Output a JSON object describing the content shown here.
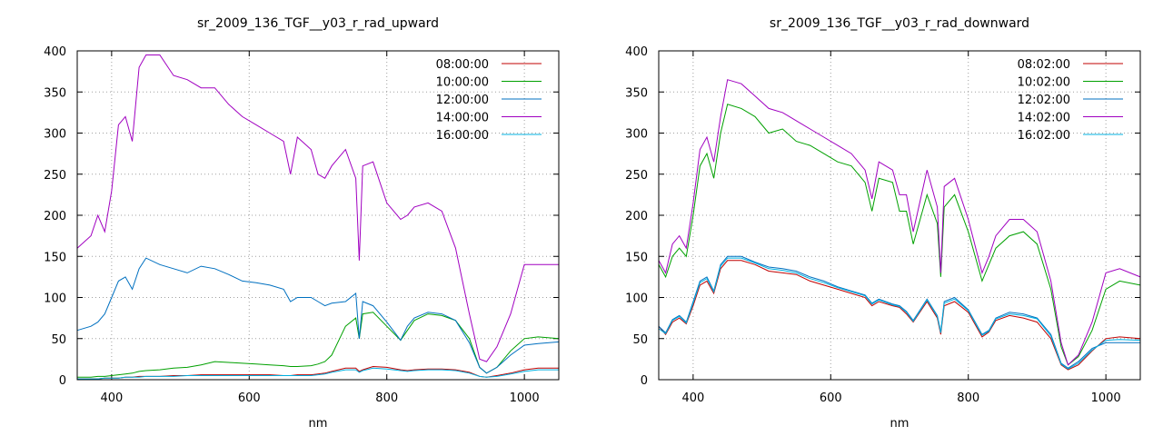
{
  "colors": {
    "08": "#c00000",
    "10": "#00a000",
    "12": "#0070c0",
    "14": "#a000c0",
    "16": "#00b0e0"
  },
  "chart_data": [
    {
      "type": "line",
      "title": "sr_2009_136_TGF__y03_r_rad_upward",
      "xlabel": "nm",
      "ylabel": "",
      "xlim": [
        350,
        1050
      ],
      "ylim": [
        0,
        400
      ],
      "xticks": [
        400,
        600,
        800,
        1000
      ],
      "yticks": [
        0,
        50,
        100,
        150,
        200,
        250,
        300,
        350,
        400
      ],
      "grid": true,
      "legend_position": "top-right",
      "x": [
        350,
        370,
        380,
        390,
        400,
        410,
        420,
        430,
        440,
        450,
        470,
        490,
        510,
        530,
        550,
        570,
        590,
        610,
        630,
        650,
        660,
        670,
        690,
        700,
        710,
        720,
        740,
        755,
        760,
        765,
        780,
        800,
        820,
        830,
        840,
        860,
        880,
        900,
        920,
        935,
        945,
        960,
        980,
        1000,
        1020,
        1050
      ],
      "series": [
        {
          "name": "08:00:00",
          "color_key": "08",
          "values": [
            1,
            1,
            1,
            2,
            2,
            2,
            3,
            3,
            4,
            4,
            4,
            5,
            5,
            6,
            6,
            6,
            6,
            6,
            6,
            5,
            5,
            6,
            6,
            7,
            8,
            10,
            14,
            14,
            10,
            12,
            16,
            15,
            12,
            11,
            12,
            13,
            13,
            12,
            9,
            4,
            3,
            5,
            8,
            12,
            14,
            14
          ]
        },
        {
          "name": "10:00:00",
          "color_key": "10",
          "values": [
            3,
            3,
            4,
            4,
            5,
            6,
            7,
            8,
            10,
            11,
            12,
            14,
            15,
            18,
            22,
            21,
            20,
            19,
            18,
            17,
            16,
            16,
            17,
            19,
            22,
            30,
            65,
            75,
            50,
            80,
            82,
            65,
            48,
            60,
            72,
            80,
            78,
            72,
            50,
            15,
            8,
            15,
            35,
            50,
            52,
            50
          ]
        },
        {
          "name": "12:00:00",
          "color_key": "12",
          "values": [
            60,
            65,
            70,
            80,
            100,
            120,
            125,
            110,
            135,
            148,
            140,
            135,
            130,
            138,
            135,
            128,
            120,
            118,
            115,
            110,
            95,
            100,
            100,
            95,
            90,
            93,
            95,
            105,
            50,
            95,
            90,
            70,
            48,
            65,
            75,
            82,
            80,
            72,
            45,
            15,
            8,
            15,
            30,
            42,
            44,
            46
          ]
        },
        {
          "name": "14:00:00",
          "color_key": "14",
          "values": [
            160,
            175,
            200,
            180,
            230,
            310,
            320,
            290,
            380,
            395,
            395,
            370,
            365,
            355,
            355,
            335,
            320,
            310,
            300,
            290,
            250,
            295,
            280,
            250,
            245,
            260,
            280,
            245,
            145,
            260,
            265,
            215,
            195,
            200,
            210,
            215,
            205,
            160,
            80,
            25,
            22,
            40,
            80,
            140,
            140,
            140
          ]
        },
        {
          "name": "16:00:00",
          "color_key": "16",
          "values": [
            1,
            1,
            1,
            2,
            2,
            2,
            3,
            3,
            3,
            4,
            4,
            4,
            5,
            5,
            5,
            5,
            5,
            5,
            5,
            5,
            5,
            5,
            5,
            6,
            7,
            9,
            12,
            12,
            9,
            11,
            14,
            13,
            11,
            10,
            11,
            12,
            12,
            11,
            8,
            4,
            3,
            4,
            7,
            10,
            12,
            12
          ]
        }
      ]
    },
    {
      "type": "line",
      "title": "sr_2009_136_TGF__y03_r_rad_downward",
      "xlabel": "nm",
      "ylabel": "",
      "xlim": [
        350,
        1050
      ],
      "ylim": [
        0,
        400
      ],
      "xticks": [
        400,
        600,
        800,
        1000
      ],
      "yticks": [
        0,
        50,
        100,
        150,
        200,
        250,
        300,
        350,
        400
      ],
      "grid": true,
      "legend_position": "top-right",
      "x": [
        350,
        360,
        370,
        380,
        390,
        400,
        410,
        420,
        430,
        440,
        450,
        470,
        490,
        510,
        530,
        550,
        570,
        590,
        610,
        630,
        650,
        660,
        670,
        690,
        700,
        710,
        720,
        740,
        755,
        760,
        765,
        780,
        800,
        820,
        830,
        840,
        860,
        880,
        900,
        920,
        935,
        945,
        960,
        980,
        1000,
        1020,
        1050
      ],
      "series": [
        {
          "name": "08:02:00",
          "color_key": "08",
          "values": [
            65,
            55,
            70,
            75,
            68,
            90,
            115,
            120,
            105,
            135,
            145,
            145,
            140,
            132,
            130,
            128,
            120,
            115,
            110,
            105,
            100,
            90,
            95,
            90,
            88,
            80,
            70,
            95,
            75,
            55,
            90,
            95,
            82,
            52,
            58,
            72,
            78,
            75,
            70,
            50,
            18,
            12,
            18,
            35,
            50,
            52,
            50
          ]
        },
        {
          "name": "10:02:00",
          "color_key": "10",
          "values": [
            140,
            125,
            150,
            160,
            150,
            200,
            260,
            275,
            245,
            300,
            335,
            330,
            320,
            300,
            305,
            290,
            285,
            275,
            265,
            260,
            240,
            205,
            245,
            240,
            205,
            205,
            165,
            225,
            190,
            125,
            210,
            225,
            180,
            120,
            140,
            160,
            175,
            180,
            165,
            110,
            40,
            18,
            28,
            60,
            110,
            120,
            115
          ]
        },
        {
          "name": "12:02:00",
          "color_key": "12",
          "values": [
            65,
            57,
            73,
            78,
            70,
            95,
            120,
            125,
            108,
            140,
            150,
            150,
            143,
            137,
            135,
            132,
            125,
            120,
            113,
            108,
            103,
            93,
            98,
            92,
            90,
            83,
            72,
            98,
            78,
            58,
            95,
            100,
            85,
            55,
            60,
            75,
            82,
            80,
            75,
            55,
            20,
            14,
            22,
            38,
            45,
            45,
            45
          ]
        },
        {
          "name": "14:02:00",
          "color_key": "14",
          "values": [
            145,
            130,
            165,
            175,
            160,
            215,
            280,
            295,
            265,
            320,
            365,
            360,
            345,
            330,
            325,
            315,
            305,
            295,
            285,
            275,
            255,
            220,
            265,
            255,
            225,
            225,
            180,
            255,
            210,
            130,
            235,
            245,
            195,
            130,
            150,
            175,
            195,
            195,
            180,
            120,
            45,
            18,
            30,
            70,
            130,
            135,
            125
          ]
        },
        {
          "name": "16:02:00",
          "color_key": "16",
          "values": [
            62,
            56,
            72,
            77,
            69,
            93,
            118,
            123,
            107,
            138,
            148,
            148,
            142,
            135,
            133,
            130,
            123,
            118,
            112,
            107,
            102,
            92,
            97,
            91,
            89,
            82,
            71,
            97,
            77,
            57,
            93,
            98,
            84,
            54,
            59,
            74,
            80,
            78,
            74,
            53,
            19,
            13,
            20,
            36,
            48,
            49,
            48
          ]
        }
      ]
    }
  ]
}
